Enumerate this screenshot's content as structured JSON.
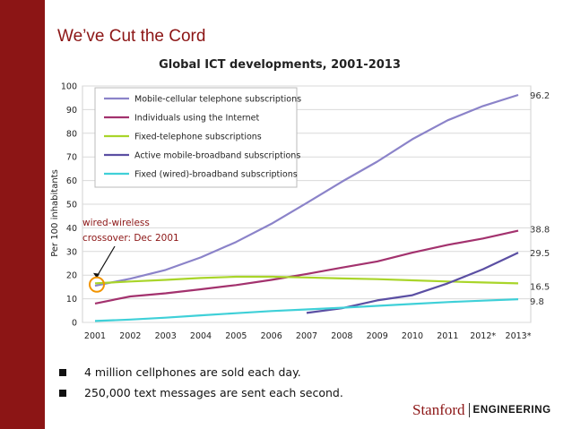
{
  "slide": {
    "title": "We’ve Cut the Cord"
  },
  "bullets": [
    "4 million cellphones are sold each day.",
    "250,000 text messages are sent each second."
  ],
  "logo": {
    "stanford": "Stanford",
    "engineering": "ENGINEERING"
  },
  "colors": {
    "brand": "#8c1515",
    "mobile_cellular": "#8b83c9",
    "internet": "#a3326e",
    "fixed_telephone": "#a9d52a",
    "mobile_broadband": "#5b4fa3",
    "fixed_broadband": "#3fd0d8"
  },
  "chart_data": {
    "type": "line",
    "title": "Global ICT developments, 2001-2013",
    "ylabel": "Per 100 inhabitants",
    "xlabel": "",
    "categories": [
      "2001",
      "2002",
      "2003",
      "2004",
      "2005",
      "2006",
      "2007",
      "2008",
      "2009",
      "2010",
      "2011",
      "2012*",
      "2013*"
    ],
    "yticks": [
      0,
      10,
      20,
      30,
      40,
      50,
      60,
      70,
      80,
      90,
      100
    ],
    "ylim": [
      0,
      100
    ],
    "grid": "horizontal",
    "legend": "top-left",
    "series": [
      {
        "name": "Mobile-cellular telephone subscriptions",
        "color": "#8b83c9",
        "values": [
          15.5,
          18.5,
          22.2,
          27.5,
          34,
          41.7,
          50.5,
          59.5,
          68,
          77.5,
          85.5,
          91.5,
          96.2
        ],
        "end_label": "96.2"
      },
      {
        "name": "Individuals using the Internet",
        "color": "#a3326e",
        "values": [
          8,
          11,
          12.3,
          14,
          15.8,
          18,
          20.5,
          23.2,
          25.8,
          29.5,
          32.8,
          35.5,
          38.8
        ],
        "end_label": "38.8"
      },
      {
        "name": "Fixed-telephone subscriptions",
        "color": "#a9d52a",
        "values": [
          16.5,
          17.3,
          18,
          18.8,
          19.3,
          19.3,
          19,
          18.6,
          18.3,
          17.8,
          17.3,
          16.9,
          16.5
        ],
        "end_label": "16.5"
      },
      {
        "name": "Active mobile-broadband subscriptions",
        "color": "#5b4fa3",
        "values": [
          null,
          null,
          null,
          null,
          null,
          null,
          4,
          6,
          9.3,
          11.5,
          16.5,
          22.5,
          29.5
        ],
        "end_label": "29.5"
      },
      {
        "name": "Fixed (wired)-broadband subscriptions",
        "color": "#3fd0d8",
        "values": [
          0.6,
          1.2,
          2,
          3,
          3.9,
          4.8,
          5.5,
          6.2,
          7,
          7.8,
          8.6,
          9.2,
          9.8
        ],
        "end_label": "9.8"
      }
    ],
    "annotation": {
      "text_line1": "wired-wireless",
      "text_line2": "crossover: Dec 2001",
      "color": "#8c1515",
      "circle_color": "#f29400",
      "x": "2001",
      "y": 16
    }
  }
}
